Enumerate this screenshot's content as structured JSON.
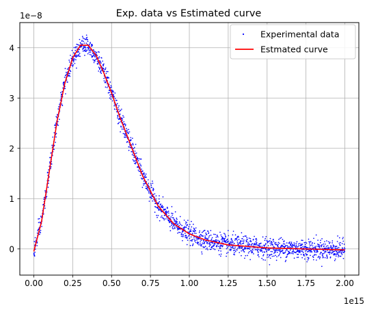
{
  "chart_data": {
    "type": "scatter",
    "title": "Exp. data vs Estimated curve",
    "xlabel": "",
    "ylabel": "",
    "x_offset_text": "1e15",
    "y_offset_text": "1e−8",
    "xlim": [
      -0.09,
      2.09
    ],
    "ylim": [
      -0.52,
      4.5
    ],
    "x_ticks": [
      0.0,
      0.25,
      0.5,
      0.75,
      1.0,
      1.25,
      1.5,
      1.75,
      2.0
    ],
    "x_tick_labels": [
      "0.00",
      "0.25",
      "0.50",
      "0.75",
      "1.00",
      "1.25",
      "1.50",
      "1.75",
      "2.00"
    ],
    "y_ticks": [
      0,
      1,
      2,
      3,
      4
    ],
    "y_tick_labels": [
      "0",
      "1",
      "2",
      "3",
      "4"
    ],
    "grid": true,
    "legend_position": "top-right",
    "series": [
      {
        "name": "Experimental data",
        "kind": "scatter",
        "color": "#0000ff",
        "marker": "point",
        "x_range": [
          0.0,
          2.0
        ],
        "n_points": 2000,
        "noise_sd": 0.1,
        "x": [
          0.0,
          0.05,
          0.1,
          0.15,
          0.2,
          0.25,
          0.3,
          0.35,
          0.4,
          0.45,
          0.5,
          0.55,
          0.6,
          0.65,
          0.7,
          0.75,
          0.8,
          0.9,
          1.0,
          1.1,
          1.25,
          1.5,
          1.75,
          2.0
        ],
        "y": [
          -0.05,
          0.55,
          1.55,
          2.55,
          3.3,
          3.8,
          4.05,
          4.05,
          3.85,
          3.5,
          3.1,
          2.65,
          2.25,
          1.85,
          1.45,
          1.15,
          0.85,
          0.5,
          0.3,
          0.18,
          0.08,
          0.02,
          0.0,
          -0.02
        ]
      },
      {
        "name": "Estmated curve",
        "kind": "line",
        "color": "#ff0000",
        "x": [
          0.0,
          0.05,
          0.1,
          0.15,
          0.2,
          0.25,
          0.3,
          0.35,
          0.4,
          0.45,
          0.5,
          0.55,
          0.6,
          0.65,
          0.7,
          0.75,
          0.8,
          0.9,
          1.0,
          1.1,
          1.25,
          1.5,
          1.75,
          2.0
        ],
        "y": [
          -0.05,
          0.55,
          1.55,
          2.55,
          3.3,
          3.8,
          4.05,
          4.05,
          3.85,
          3.5,
          3.1,
          2.65,
          2.25,
          1.85,
          1.45,
          1.15,
          0.85,
          0.5,
          0.3,
          0.18,
          0.08,
          0.02,
          0.0,
          -0.02
        ]
      }
    ]
  }
}
